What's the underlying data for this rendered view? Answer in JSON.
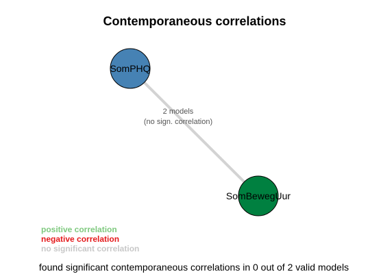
{
  "title": "Contemporaneous correlations",
  "nodes": [
    {
      "id": "n1",
      "label": "SomPHQ",
      "color": "#4682b4"
    },
    {
      "id": "n2",
      "label": "SomBewegUur",
      "color": "#008040"
    }
  ],
  "edge": {
    "line1": "2 models",
    "line2": "(no sign. correlation)",
    "color": "#d3d3d3"
  },
  "legend": [
    {
      "label": "positive correlation",
      "color": "#7fc97f"
    },
    {
      "label": "negative correlation",
      "color": "#e41a1c"
    },
    {
      "label": "no significant correlation",
      "color": "#c8c8c8"
    }
  ],
  "footer": "found significant contemporaneous correlations in 0 out of 2 valid models"
}
